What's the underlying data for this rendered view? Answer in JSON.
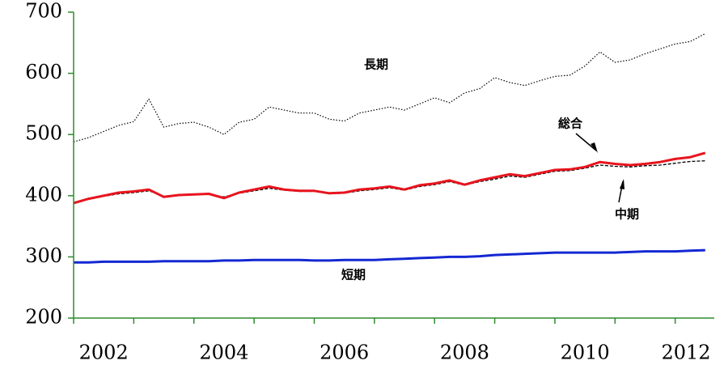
{
  "chart_data": {
    "type": "line",
    "x": [
      2002,
      2002.25,
      2002.5,
      2002.75,
      2003,
      2003.25,
      2003.5,
      2003.75,
      2004,
      2004.25,
      2004.5,
      2004.75,
      2005,
      2005.25,
      2005.5,
      2005.75,
      2006,
      2006.25,
      2006.5,
      2006.75,
      2007,
      2007.25,
      2007.5,
      2007.75,
      2008,
      2008.25,
      2008.5,
      2008.75,
      2009,
      2009.25,
      2009.5,
      2009.75,
      2010,
      2010.25,
      2010.5,
      2010.75,
      2011,
      2011.25,
      2011.5,
      2011.75,
      2012,
      2012.25,
      2012.5
    ],
    "series": [
      {
        "name": "長期",
        "color": "#000000",
        "style": "dotted",
        "values": [
          488,
          495,
          505,
          515,
          521,
          558,
          512,
          518,
          520,
          512,
          500,
          520,
          525,
          545,
          540,
          535,
          535,
          525,
          522,
          535,
          540,
          545,
          540,
          550,
          560,
          552,
          568,
          575,
          593,
          585,
          580,
          588,
          595,
          597,
          612,
          635,
          618,
          622,
          632,
          640,
          648,
          652,
          665
        ]
      },
      {
        "name": "中期",
        "color": "#000000",
        "style": "dashed",
        "values": [
          389,
          394,
          399,
          403,
          405,
          408,
          399,
          401,
          402,
          402,
          398,
          404,
          408,
          412,
          409,
          407,
          407,
          403,
          404,
          408,
          410,
          413,
          409,
          415,
          418,
          423,
          417,
          423,
          427,
          432,
          430,
          435,
          440,
          441,
          445,
          450,
          448,
          447,
          449,
          450,
          453,
          456,
          457
        ]
      },
      {
        "name": "総合",
        "color": "#e8141e",
        "style": "solid",
        "values": [
          388,
          395,
          400,
          405,
          407,
          410,
          398,
          401,
          402,
          403,
          396,
          405,
          410,
          415,
          410,
          408,
          408,
          404,
          405,
          410,
          412,
          415,
          410,
          417,
          420,
          425,
          418,
          425,
          430,
          435,
          432,
          437,
          442,
          443,
          447,
          455,
          452,
          450,
          452,
          455,
          460,
          463,
          470
        ]
      },
      {
        "name": "短期",
        "color": "#1428d2",
        "style": "solid",
        "values": [
          291,
          291,
          292,
          292,
          292,
          292,
          293,
          293,
          293,
          293,
          294,
          294,
          295,
          295,
          295,
          295,
          294,
          294,
          295,
          295,
          295,
          296,
          297,
          298,
          299,
          300,
          300,
          301,
          303,
          304,
          305,
          306,
          307,
          307,
          307,
          307,
          307,
          308,
          309,
          309,
          309,
          310,
          311
        ]
      }
    ],
    "xlim": [
      2002,
      2012.65
    ],
    "xticks": [
      2002,
      2003,
      2004,
      2005,
      2006,
      2007,
      2008,
      2009,
      2010,
      2011,
      2012
    ],
    "xtick_labels": [
      {
        "value": 2002,
        "label": "2002"
      },
      {
        "value": 2004,
        "label": "2004"
      },
      {
        "value": 2006,
        "label": "2006"
      },
      {
        "value": 2008,
        "label": "2008"
      },
      {
        "value": 2010,
        "label": "2010"
      },
      {
        "value": 2012,
        "label": "2012"
      }
    ],
    "ylim": [
      200,
      700
    ],
    "yticks": [
      200,
      300,
      400,
      500,
      600,
      700
    ],
    "axis_color": "#2e8b2e",
    "grid": false
  }
}
